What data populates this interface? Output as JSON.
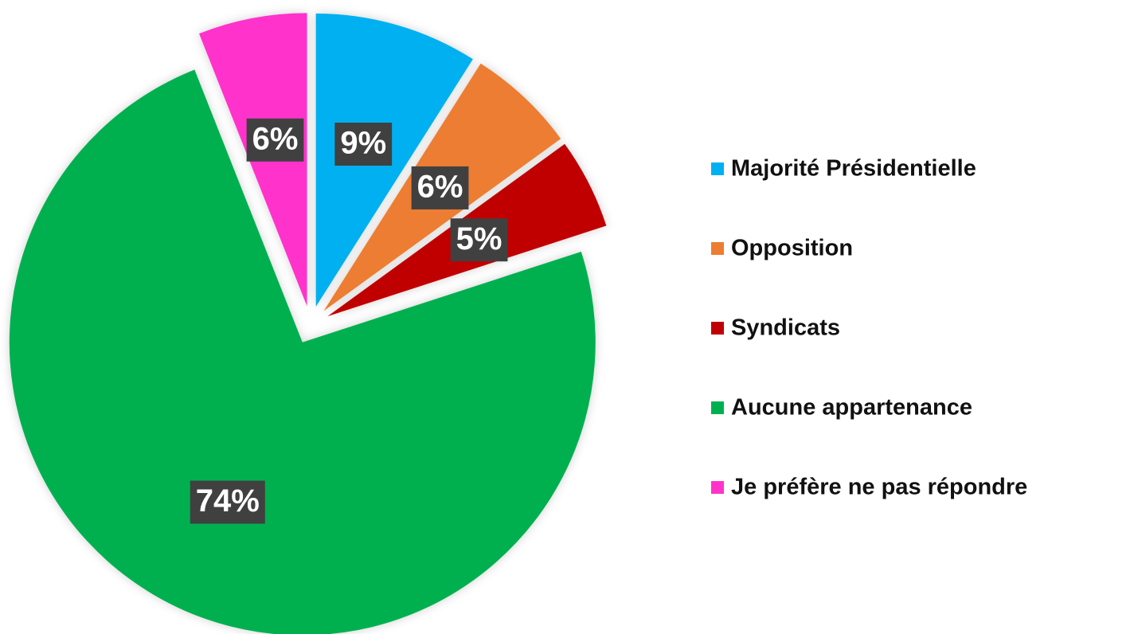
{
  "chart_data": {
    "type": "pie",
    "categories": [
      "Majorité Présidentielle",
      "Opposition",
      "Syndicats",
      "Aucune appartenance",
      "Je préfère ne pas répondre"
    ],
    "values": [
      9,
      6,
      5,
      74,
      6
    ],
    "value_labels": [
      "9%",
      "6%",
      "5%",
      "74%",
      "6%"
    ],
    "colors": [
      "#00b0f0",
      "#ed7d31",
      "#c00000",
      "#00b050",
      "#ff33cc"
    ],
    "legend": "right"
  }
}
